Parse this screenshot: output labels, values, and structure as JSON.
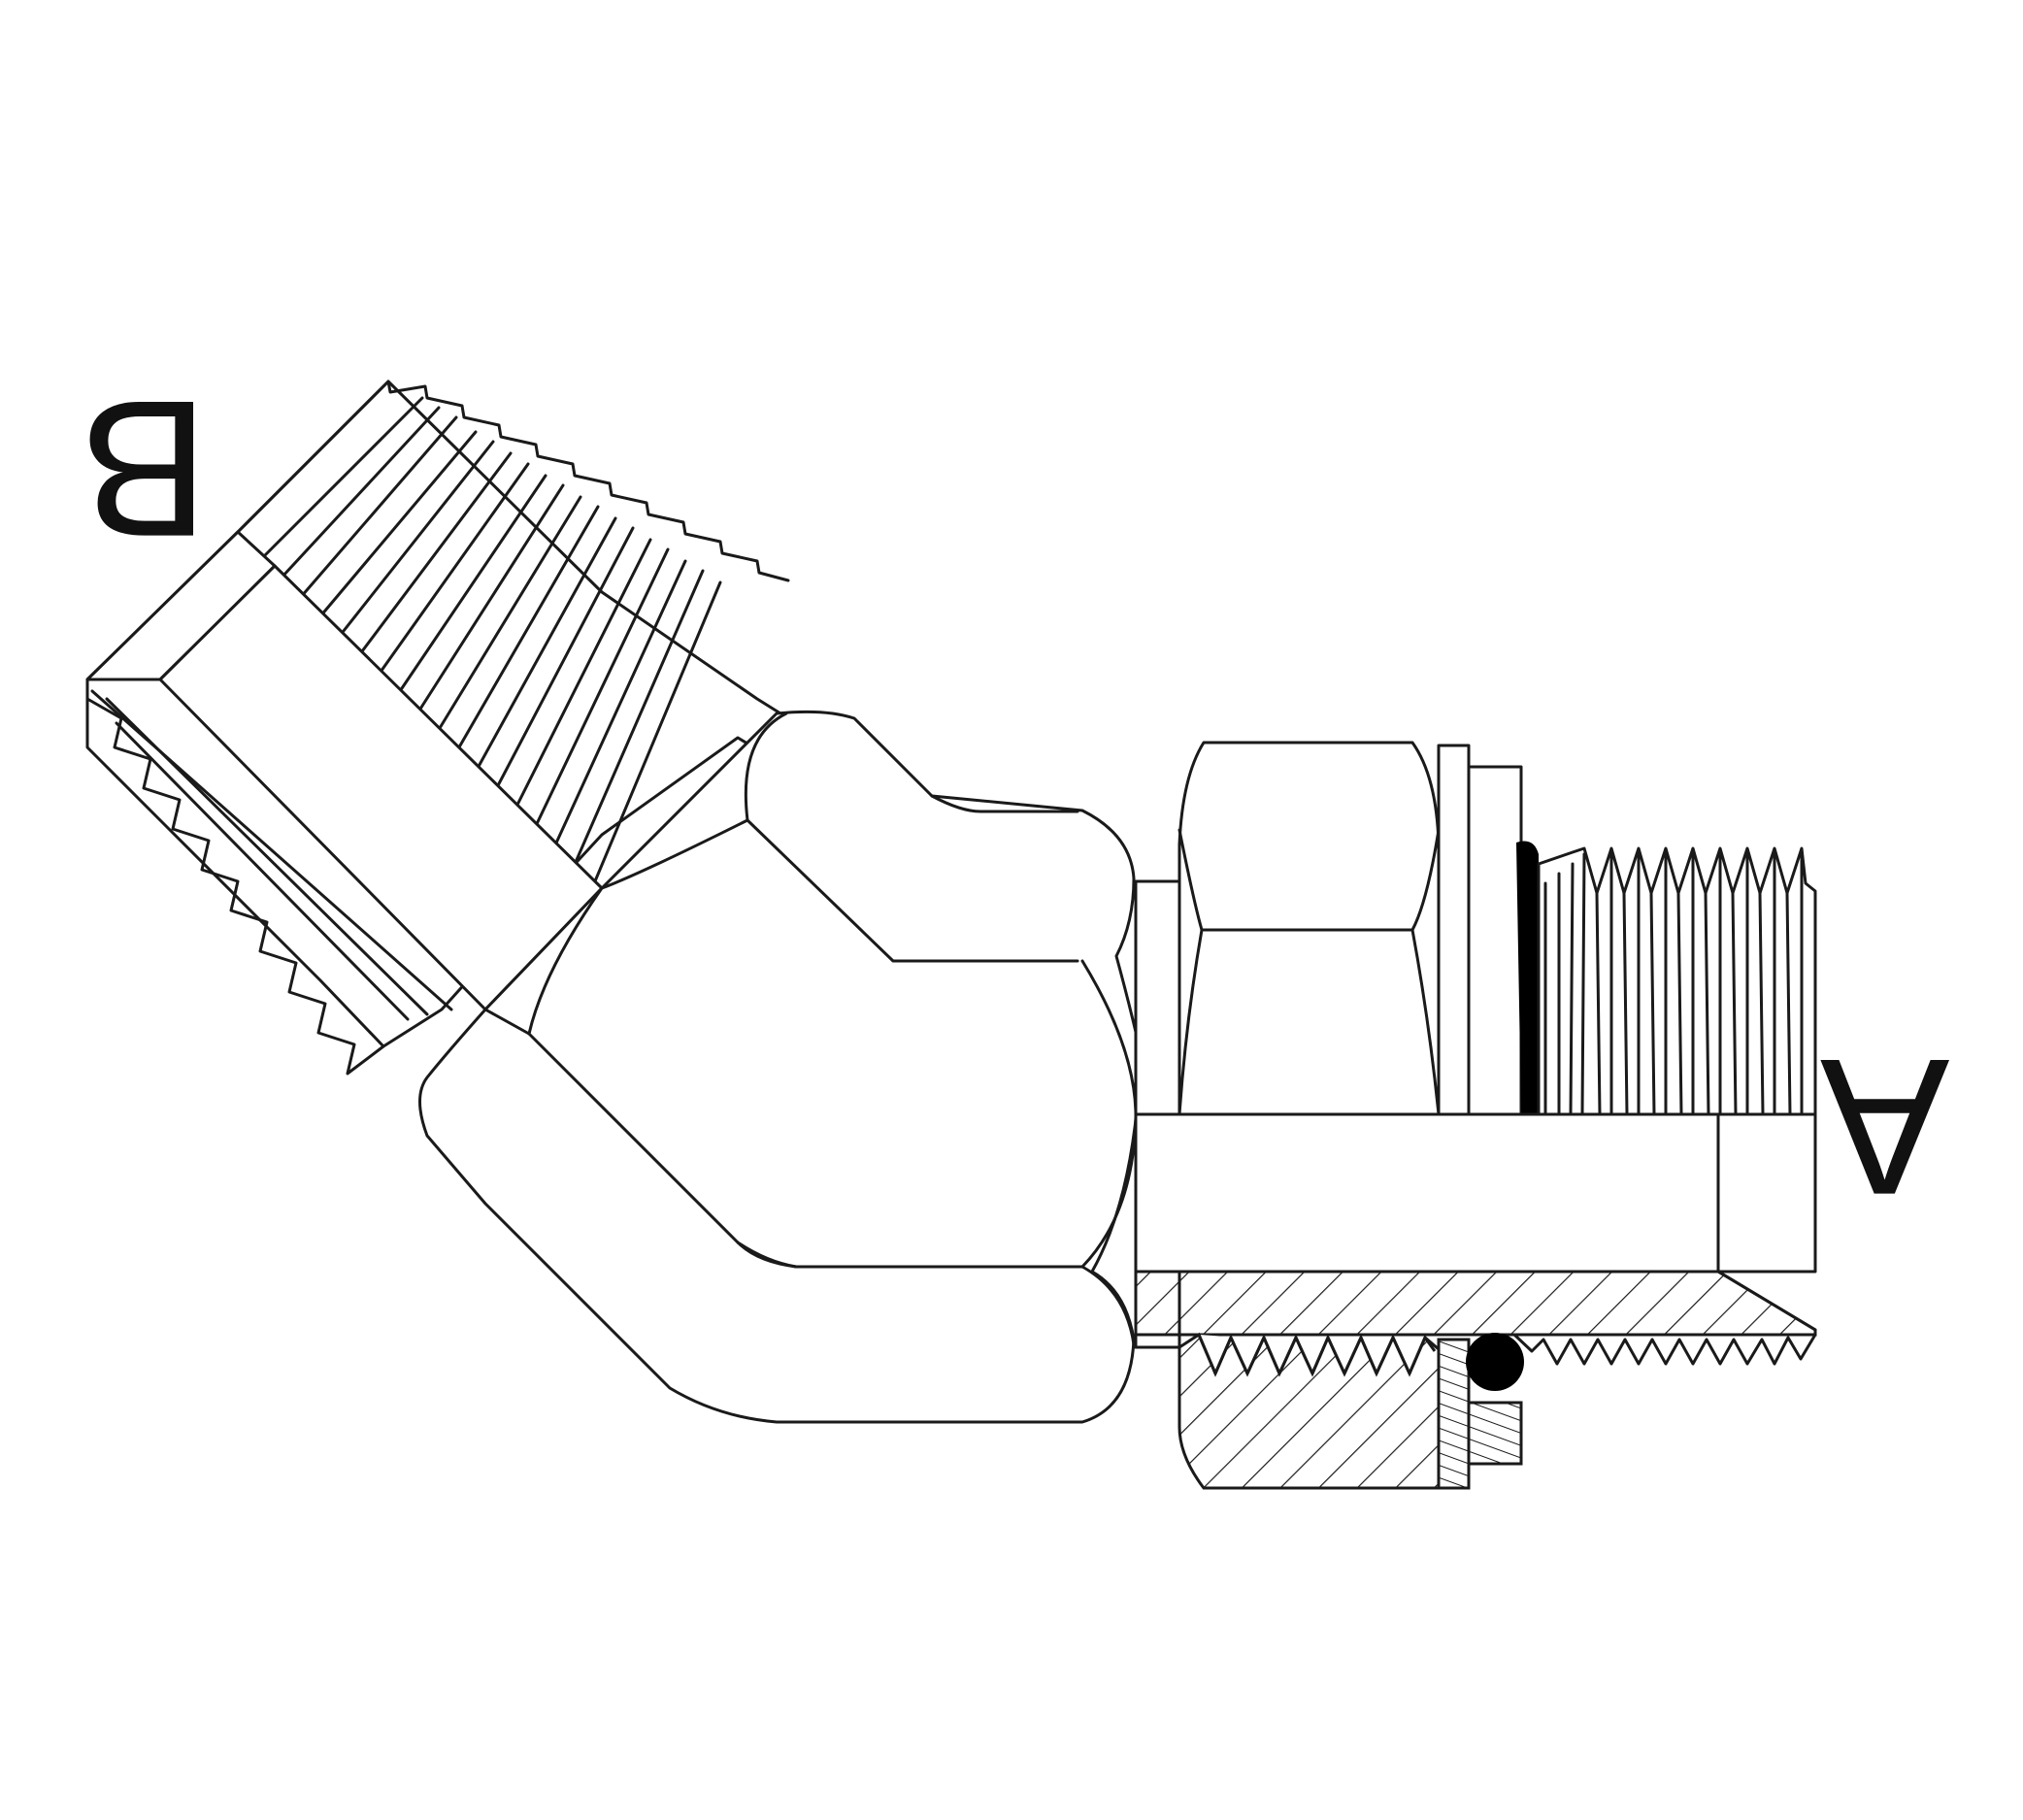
{
  "labels": {
    "port_b": "B",
    "port_a": "A"
  },
  "colors": {
    "line": "#1a1a1a",
    "background": "#ffffff",
    "o_ring": "#000000"
  }
}
